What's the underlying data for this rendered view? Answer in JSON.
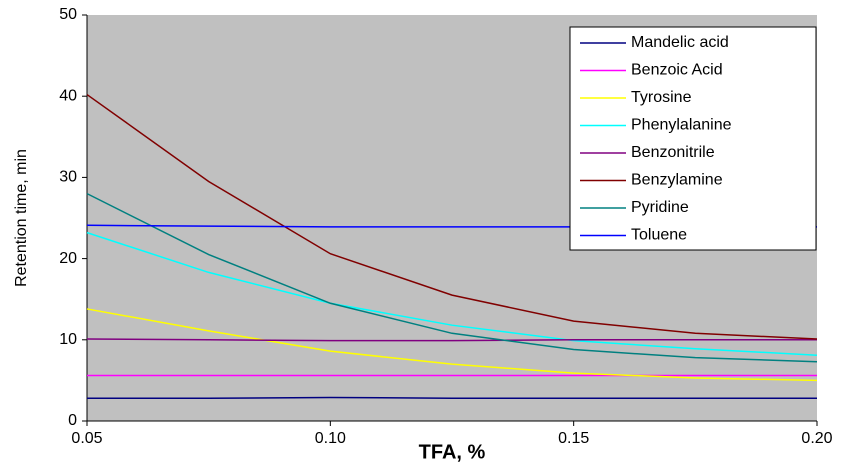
{
  "chart_data": {
    "type": "line",
    "x_label": "TFA, %",
    "y_label": "Retention time, min",
    "x": [
      0.05,
      0.075,
      0.1,
      0.125,
      0.15,
      0.175,
      0.2
    ],
    "xlim": [
      0.05,
      0.2
    ],
    "xticks": [
      0.05,
      {
        "value": 0.1,
        "label": "0.10"
      },
      0.15,
      {
        "value": 0.2,
        "label": "0.20"
      }
    ],
    "ylim": [
      0,
      50
    ],
    "yticks": [
      0,
      10,
      20,
      30,
      40,
      50
    ],
    "background": "#c0c0c0",
    "legend": "upper right",
    "series": [
      {
        "name": "Mandelic acid",
        "color": "#000080",
        "values": [
          2.8,
          2.8,
          2.9,
          2.8,
          2.8,
          2.8,
          2.8
        ]
      },
      {
        "name": "Benzoic Acid",
        "color": "#ff00ff",
        "values": [
          5.6,
          5.6,
          5.6,
          5.6,
          5.6,
          5.6,
          5.6
        ]
      },
      {
        "name": "Tyrosine",
        "color": "#ffff00",
        "values": [
          13.8,
          11.1,
          8.6,
          7.0,
          5.9,
          5.3,
          5.0
        ]
      },
      {
        "name": "Phenylalanine",
        "color": "#00ffff",
        "values": [
          23.2,
          18.3,
          14.5,
          11.8,
          9.9,
          8.9,
          8.1
        ]
      },
      {
        "name": "Benzonitrile",
        "color": "#800080",
        "values": [
          10.1,
          10.0,
          9.9,
          9.9,
          10.0,
          10.0,
          10.0
        ]
      },
      {
        "name": "Benzylamine",
        "color": "#800000",
        "values": [
          40.2,
          29.5,
          20.6,
          15.5,
          12.3,
          10.8,
          10.1
        ]
      },
      {
        "name": "Pyridine",
        "color": "#008080",
        "values": [
          28.0,
          20.5,
          14.5,
          10.8,
          8.8,
          7.8,
          7.3
        ]
      },
      {
        "name": "Toluene",
        "color": "#0000ff",
        "values": [
          24.1,
          24.0,
          23.9,
          23.9,
          23.9,
          23.9,
          23.9
        ]
      }
    ]
  }
}
